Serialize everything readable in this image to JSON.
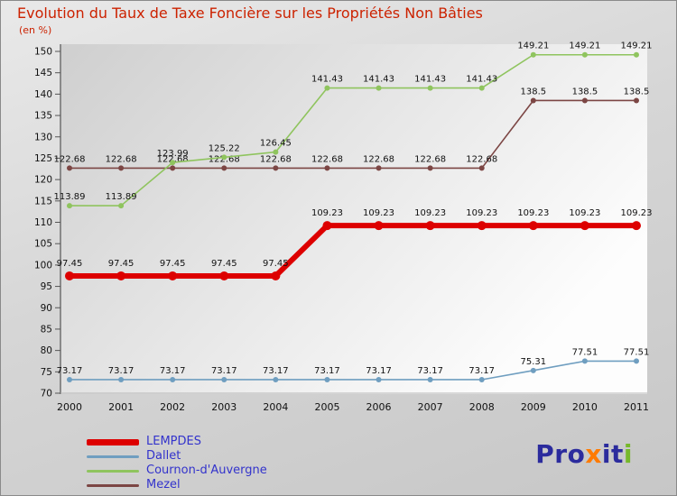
{
  "title": "Evolution du Taux de Taxe Foncière sur les Propriétés Non Bâties",
  "subtitle": "(en %)",
  "chart_data": {
    "type": "line",
    "title": "Evolution du Taux de Taxe Foncière sur les Propriétés Non Bâties",
    "subtitle": "(en %)",
    "categories": [
      "2000",
      "2001",
      "2002",
      "2003",
      "2004",
      "2005",
      "2006",
      "2007",
      "2008",
      "2009",
      "2010",
      "2011"
    ],
    "series": [
      {
        "name": "LEMPDES",
        "color": "#dd0000",
        "line_width": 6,
        "marker_size": 5,
        "values": [
          97.45,
          97.45,
          97.45,
          97.45,
          97.45,
          109.23,
          109.23,
          109.23,
          109.23,
          109.23,
          109.23,
          109.23
        ]
      },
      {
        "name": "Dallet",
        "color": "#6f9ec0",
        "line_width": 1.6,
        "marker_size": 3,
        "values": [
          73.17,
          73.17,
          73.17,
          73.17,
          73.17,
          73.17,
          73.17,
          73.17,
          73.17,
          75.31,
          77.51,
          77.51
        ]
      },
      {
        "name": "Cournon-d'Auvergne",
        "color": "#8fc45e",
        "line_width": 1.6,
        "marker_size": 3,
        "values": [
          113.89,
          113.89,
          123.99,
          125.22,
          126.45,
          141.43,
          141.43,
          141.43,
          141.43,
          149.21,
          149.21,
          149.21
        ]
      },
      {
        "name": "Mezel",
        "color": "#7c4644",
        "line_width": 1.6,
        "marker_size": 3,
        "values": [
          122.68,
          122.68,
          122.68,
          122.68,
          122.68,
          122.68,
          122.68,
          122.68,
          122.68,
          138.5,
          138.5,
          138.5
        ]
      }
    ],
    "ylim": [
      70,
      150
    ],
    "ytick_step": 5,
    "grid": false,
    "show_point_labels": true,
    "legend_position": "bottom-left"
  },
  "logo": {
    "parts": [
      {
        "text": "Pro",
        "color": "#2b2b9d"
      },
      {
        "text": "x",
        "color": "#ff7a00"
      },
      {
        "text": "it",
        "color": "#2b2b9d"
      },
      {
        "text": "i",
        "color": "#76b82a"
      }
    ]
  }
}
